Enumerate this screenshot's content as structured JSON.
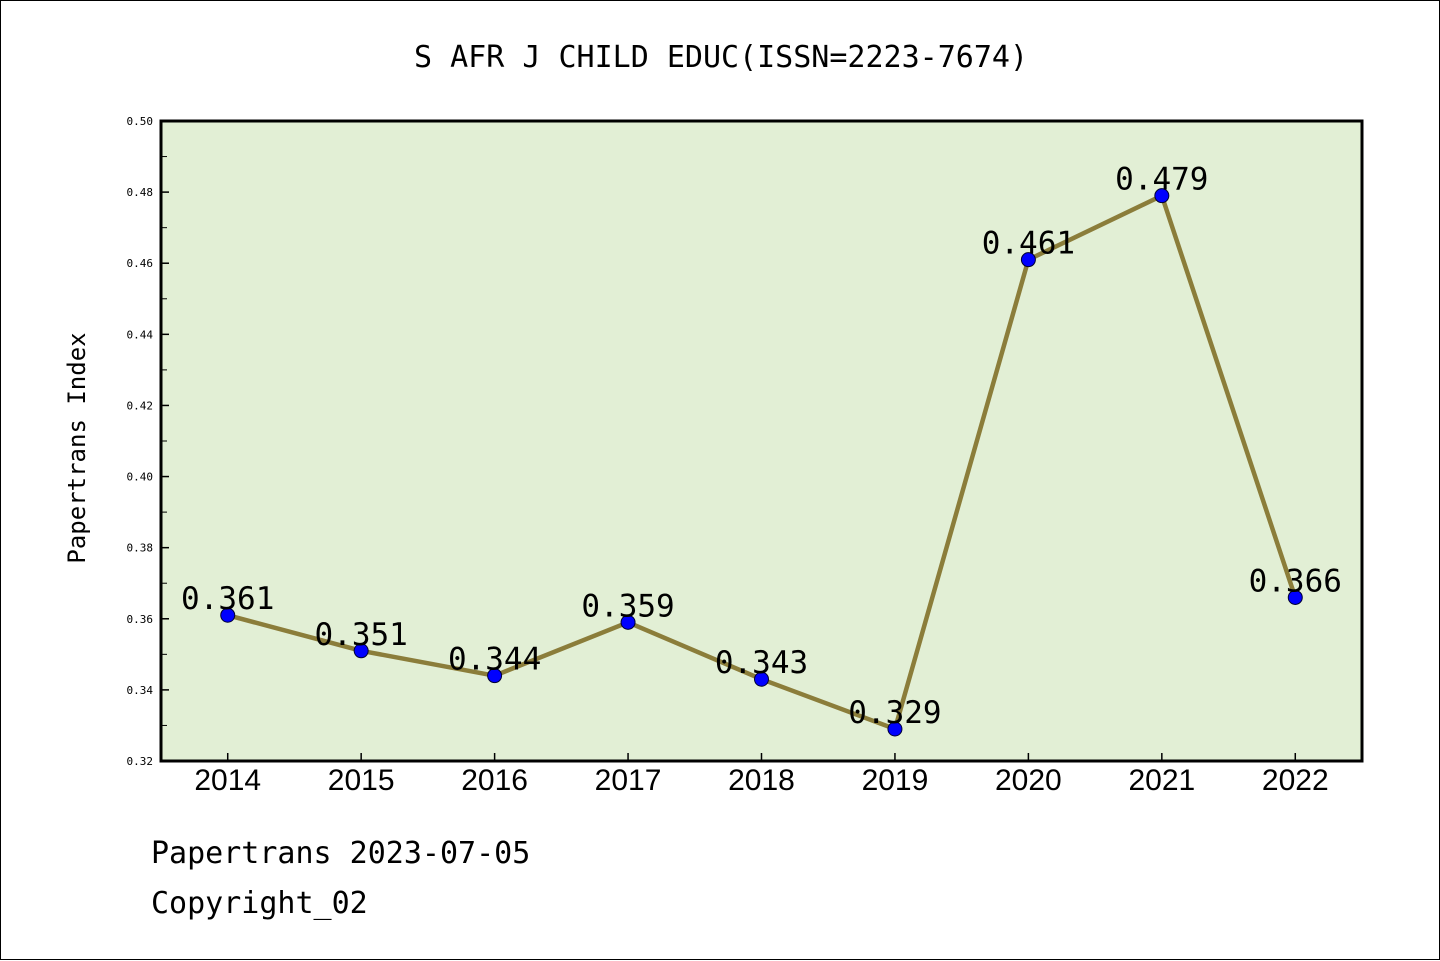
{
  "chart_data": {
    "type": "line",
    "title": "S AFR J CHILD EDUC(ISSN=2223-7674)",
    "xlabel": "",
    "ylabel": "Papertrans Index",
    "categories": [
      "2014",
      "2015",
      "2016",
      "2017",
      "2018",
      "2019",
      "2020",
      "2021",
      "2022"
    ],
    "series": [
      {
        "values": [
          0.361,
          0.351,
          0.344,
          0.359,
          0.343,
          0.329,
          0.461,
          0.479,
          0.366
        ],
        "labels": [
          "0.361",
          "0.351",
          "0.344",
          "0.359",
          "0.343",
          "0.329",
          "0.461",
          "0.479",
          "0.366"
        ]
      }
    ],
    "ylim": [
      0.32,
      0.5
    ],
    "yticks": [
      "0.32",
      "0.34",
      "0.36",
      "0.38",
      "0.40",
      "0.42",
      "0.44",
      "0.46",
      "0.48",
      "0.50"
    ],
    "grid": false,
    "colors": {
      "plot_background": "#e2efd5",
      "line": "#8b7d3a",
      "marker": "#0000ff"
    }
  },
  "footer": {
    "date_line": "Papertrans 2023-07-05",
    "copyright_line": "Copyright_02"
  }
}
